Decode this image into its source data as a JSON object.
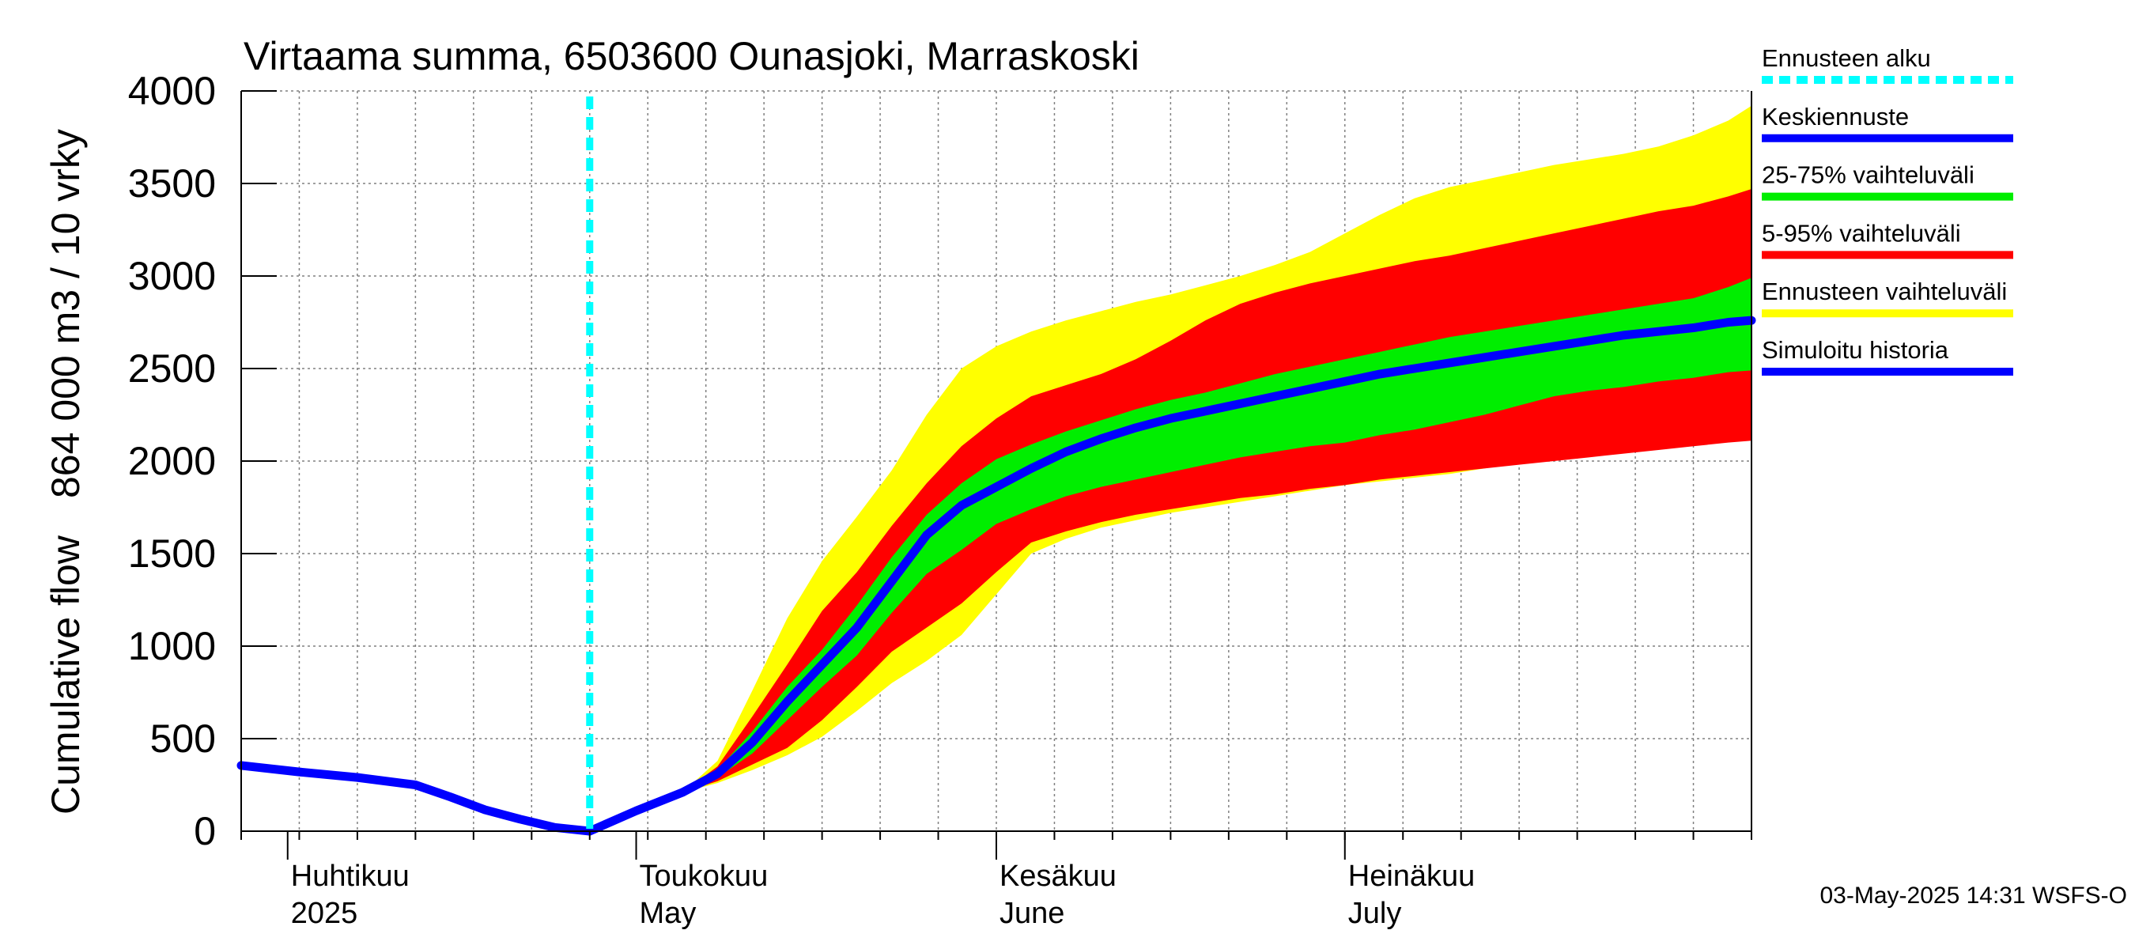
{
  "chart_data": {
    "type": "area",
    "title": "Virtaama summa, 6503600 Ounasjoki, Marraskoski",
    "ylabel": [
      "Cumulative flow",
      "864 000 m3 / 10 vrky"
    ],
    "ylim": [
      0,
      4000
    ],
    "yticks": [
      0,
      500,
      1000,
      1500,
      2000,
      2500,
      3000,
      3500,
      4000
    ],
    "xlim": [
      "2025-03-28",
      "2025-08-05"
    ],
    "grid": true,
    "month_labels": [
      {
        "date": "2025-04-01",
        "fi": "Huhtikuu",
        "en": "2025"
      },
      {
        "date": "2025-05-01",
        "fi": "Toukokuu",
        "en": "May"
      },
      {
        "date": "2025-06-01",
        "fi": "Kesäkuu",
        "en": "June"
      },
      {
        "date": "2025-07-01",
        "fi": "Heinäkuu",
        "en": "July"
      }
    ],
    "forecast_start": "2025-04-27",
    "history": {
      "name": "Simuloitu historia",
      "color": "#0000ff",
      "x": [
        "2025-03-28",
        "2025-04-02",
        "2025-04-07",
        "2025-04-12",
        "2025-04-15",
        "2025-04-18",
        "2025-04-21",
        "2025-04-24",
        "2025-04-27"
      ],
      "values": [
        355,
        320,
        290,
        250,
        185,
        115,
        65,
        20,
        0
      ]
    },
    "forecast": {
      "x": [
        "2025-04-27",
        "2025-05-01",
        "2025-05-05",
        "2025-05-08",
        "2025-05-11",
        "2025-05-14",
        "2025-05-17",
        "2025-05-20",
        "2025-05-23",
        "2025-05-26",
        "2025-05-29",
        "2025-06-01",
        "2025-06-04",
        "2025-06-07",
        "2025-06-10",
        "2025-06-13",
        "2025-06-16",
        "2025-06-19",
        "2025-06-22",
        "2025-06-25",
        "2025-06-28",
        "2025-07-01",
        "2025-07-04",
        "2025-07-07",
        "2025-07-10",
        "2025-07-13",
        "2025-07-16",
        "2025-07-19",
        "2025-07-22",
        "2025-07-25",
        "2025-07-28",
        "2025-07-31",
        "2025-08-03",
        "2025-08-05"
      ],
      "median": {
        "name": "Keskiennuste",
        "color": "#0000ff",
        "values": [
          0,
          110,
          210,
          310,
          480,
          700,
          900,
          1100,
          1350,
          1600,
          1760,
          1860,
          1960,
          2050,
          2120,
          2180,
          2230,
          2270,
          2310,
          2350,
          2390,
          2430,
          2470,
          2500,
          2530,
          2560,
          2590,
          2620,
          2650,
          2680,
          2700,
          2720,
          2750,
          2760
        ]
      },
      "p25": [
        0,
        110,
        210,
        290,
        420,
        600,
        780,
        950,
        1180,
        1390,
        1520,
        1660,
        1740,
        1810,
        1860,
        1900,
        1940,
        1980,
        2020,
        2050,
        2080,
        2100,
        2140,
        2170,
        2210,
        2250,
        2300,
        2350,
        2380,
        2400,
        2430,
        2450,
        2480,
        2490
      ],
      "p75": [
        0,
        110,
        210,
        330,
        540,
        780,
        980,
        1220,
        1480,
        1710,
        1880,
        2010,
        2090,
        2160,
        2220,
        2280,
        2330,
        2370,
        2420,
        2470,
        2510,
        2550,
        2590,
        2630,
        2670,
        2700,
        2730,
        2760,
        2790,
        2820,
        2850,
        2880,
        2940,
        2990
      ],
      "p05": [
        0,
        110,
        210,
        270,
        360,
        450,
        600,
        780,
        970,
        1100,
        1230,
        1400,
        1560,
        1620,
        1670,
        1710,
        1740,
        1770,
        1800,
        1820,
        1850,
        1870,
        1900,
        1920,
        1940,
        1960,
        1980,
        2000,
        2020,
        2040,
        2060,
        2080,
        2100,
        2110
      ],
      "p95": [
        0,
        110,
        210,
        350,
        620,
        900,
        1190,
        1400,
        1650,
        1880,
        2080,
        2230,
        2350,
        2410,
        2470,
        2550,
        2650,
        2760,
        2850,
        2910,
        2960,
        3000,
        3040,
        3080,
        3110,
        3150,
        3190,
        3230,
        3270,
        3310,
        3350,
        3380,
        3430,
        3470
      ],
      "min": [
        0,
        110,
        210,
        260,
        330,
        410,
        510,
        650,
        800,
        920,
        1060,
        1280,
        1500,
        1580,
        1640,
        1680,
        1720,
        1750,
        1780,
        1810,
        1840,
        1870,
        1890,
        1910,
        1930,
        1960,
        1990,
        2010,
        2030,
        2050,
        2070,
        2090,
        2110,
        2120
      ],
      "max": [
        0,
        110,
        210,
        380,
        760,
        1150,
        1460,
        1700,
        1950,
        2250,
        2500,
        2620,
        2700,
        2760,
        2810,
        2860,
        2900,
        2950,
        3000,
        3060,
        3130,
        3230,
        3330,
        3420,
        3480,
        3520,
        3560,
        3600,
        3630,
        3660,
        3700,
        3760,
        3840,
        3920
      ]
    },
    "legend": [
      {
        "label": "Ennusteen alku",
        "color": "#00ffff",
        "style": "dashed"
      },
      {
        "label": "Keskiennuste",
        "color": "#0000ff",
        "style": "solid"
      },
      {
        "label": "25-75% vaihteluväli",
        "color": "#00ee00",
        "style": "solid"
      },
      {
        "label": "5-95% vaihteluväli",
        "color": "#ff0000",
        "style": "solid"
      },
      {
        "label": "Ennusteen vaihteluväli",
        "color": "#ffff00",
        "style": "solid"
      },
      {
        "label": "Simuloitu historia",
        "color": "#0000ff",
        "style": "solid"
      }
    ],
    "legend_placement": "right",
    "colors": {
      "band_minmax": "#ffff00",
      "band_5_95": "#ff0000",
      "band_25_75": "#00ee00",
      "median": "#0000ff",
      "forecast_start": "#00ffff",
      "grid": "#808080"
    }
  },
  "footer": "03-May-2025 14:31 WSFS-O"
}
